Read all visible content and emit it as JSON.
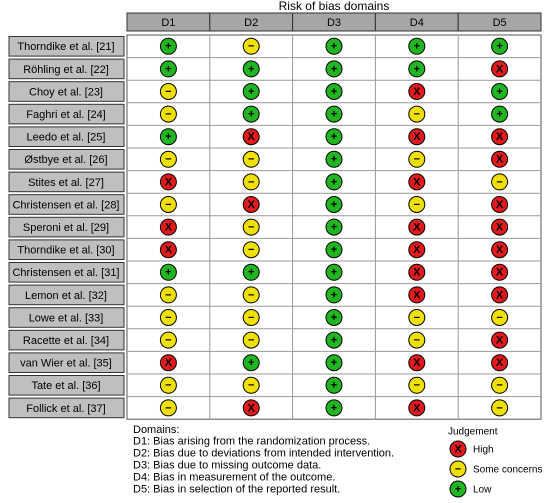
{
  "title": "Risk of bias domains",
  "columns": [
    "D1",
    "D2",
    "D3",
    "D4",
    "D5"
  ],
  "rows": [
    {
      "study": "Thorndike et al. [21]",
      "cells": [
        "+",
        "−",
        "+",
        "+",
        "+"
      ]
    },
    {
      "study": "Röhling et al. [22]",
      "cells": [
        "+",
        "+",
        "+",
        "+",
        "X"
      ]
    },
    {
      "study": "Choy et al. [23]",
      "cells": [
        "−",
        "+",
        "+",
        "X",
        "+"
      ]
    },
    {
      "study": "Faghri et al. [24]",
      "cells": [
        "−",
        "+",
        "+",
        "−",
        "+"
      ]
    },
    {
      "study": "Leedo et al. [25]",
      "cells": [
        "+",
        "X",
        "+",
        "X",
        "X"
      ]
    },
    {
      "study": "Østbye et al. [26]",
      "cells": [
        "−",
        "−",
        "+",
        "−",
        "X"
      ]
    },
    {
      "study": "Stites et al. [27]",
      "cells": [
        "X",
        "−",
        "+",
        "X",
        "−"
      ]
    },
    {
      "study": "Christensen et al. [28]",
      "cells": [
        "−",
        "X",
        "+",
        "−",
        "X"
      ]
    },
    {
      "study": "Speroni et al. [29]",
      "cells": [
        "X",
        "−",
        "+",
        "X",
        "X"
      ]
    },
    {
      "study": "Thorndike et al. [30]",
      "cells": [
        "X",
        "−",
        "+",
        "X",
        "X"
      ]
    },
    {
      "study": "Christensen et al. [31]",
      "cells": [
        "+",
        "+",
        "+",
        "X",
        "X"
      ]
    },
    {
      "study": "Lemon et al. [32]",
      "cells": [
        "−",
        "−",
        "+",
        "X",
        "X"
      ]
    },
    {
      "study": "Lowe et al. [33]",
      "cells": [
        "−",
        "−",
        "+",
        "−",
        "−"
      ]
    },
    {
      "study": "Racette et al. [34]",
      "cells": [
        "−",
        "−",
        "+",
        "−",
        "X"
      ]
    },
    {
      "study": "van Wier et al. [35]",
      "cells": [
        "X",
        "+",
        "+",
        "X",
        "X"
      ]
    },
    {
      "study": "Tate et al. [36]",
      "cells": [
        "−",
        "−",
        "+",
        "−",
        "−"
      ]
    },
    {
      "study": "Follick et al. [37]",
      "cells": [
        "−",
        "X",
        "+",
        "X",
        "−"
      ]
    }
  ],
  "domains": {
    "heading": "Domains:",
    "items": [
      "D1: Bias arising from the randomization process.",
      "D2: Bias due to deviations from intended intervention.",
      "D3: Bias due to missing outcome data.",
      "D4: Bias in measurement of the outcome.",
      "D5: Bias in selection of the reported result."
    ]
  },
  "legend": {
    "heading": "Judgement",
    "items": [
      {
        "symbol": "X",
        "label": "High",
        "color": "#e31a1c"
      },
      {
        "symbol": "−",
        "label": "Some concerns",
        "color": "#f0e000"
      },
      {
        "symbol": "+",
        "label": "Low",
        "color": "#22b522"
      }
    ]
  }
}
